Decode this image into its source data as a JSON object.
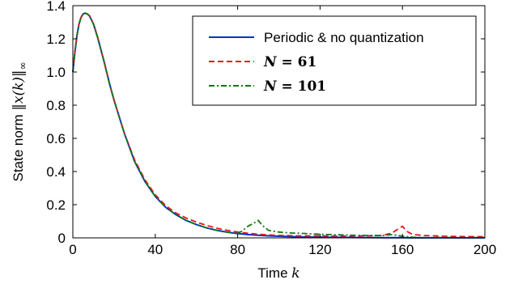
{
  "chart_data": {
    "type": "line",
    "title": "",
    "xlabel_prefix": "Time ",
    "xlabel_var": "k",
    "ylabel_prefix": "State norm ",
    "ylabel_math": "‖x(k)‖",
    "ylabel_sub": "∞",
    "xlim": [
      0,
      200
    ],
    "ylim": [
      0,
      1.4
    ],
    "xticks": [
      "0",
      "40",
      "80",
      "120",
      "160",
      "200"
    ],
    "yticks": [
      "0",
      "0.2",
      "0.4",
      "0.6",
      "0.8",
      "1.0",
      "1.2",
      "1.4"
    ],
    "xtick_values": [
      0,
      40,
      80,
      120,
      160,
      200
    ],
    "ytick_values": [
      0,
      0.2,
      0.4,
      0.6,
      0.8,
      1.0,
      1.2,
      1.4
    ],
    "grid": false,
    "legend_position": "top-right",
    "series": [
      {
        "name": "Periodic & no quantization",
        "color": "#0033cc",
        "dash": "solid",
        "x": [
          0,
          1,
          2,
          3,
          4,
          5,
          6,
          7,
          8,
          10,
          12,
          15,
          18,
          20,
          25,
          30,
          35,
          40,
          45,
          50,
          55,
          60,
          65,
          70,
          75,
          80,
          85,
          90,
          95,
          100,
          110,
          120,
          130,
          140,
          150,
          160,
          170,
          180,
          190,
          200
        ],
        "y": [
          1.0,
          1.12,
          1.22,
          1.29,
          1.33,
          1.35,
          1.355,
          1.35,
          1.34,
          1.29,
          1.21,
          1.07,
          0.92,
          0.83,
          0.63,
          0.46,
          0.34,
          0.25,
          0.185,
          0.14,
          0.105,
          0.08,
          0.06,
          0.045,
          0.034,
          0.026,
          0.02,
          0.016,
          0.012,
          0.01,
          0.006,
          0.004,
          0.003,
          0.002,
          0.0015,
          0.001,
          0.0008,
          0.0006,
          0.0005,
          0.0004
        ]
      },
      {
        "name": "N = 61",
        "label_prefix": "N",
        "label_suffix": " = 61",
        "color": "#e8141c",
        "dash": "dashed",
        "x": [
          0,
          1,
          2,
          3,
          4,
          5,
          6,
          7,
          8,
          10,
          12,
          15,
          18,
          20,
          25,
          30,
          35,
          40,
          45,
          50,
          55,
          60,
          65,
          70,
          75,
          80,
          85,
          90,
          95,
          100,
          110,
          120,
          130,
          140,
          150,
          155,
          158,
          160,
          162,
          165,
          170,
          180,
          190,
          200
        ],
        "y": [
          1.0,
          1.12,
          1.22,
          1.29,
          1.33,
          1.35,
          1.355,
          1.35,
          1.34,
          1.29,
          1.21,
          1.07,
          0.92,
          0.83,
          0.63,
          0.47,
          0.35,
          0.26,
          0.195,
          0.15,
          0.12,
          0.095,
          0.075,
          0.058,
          0.045,
          0.035,
          0.028,
          0.022,
          0.018,
          0.015,
          0.012,
          0.012,
          0.011,
          0.012,
          0.014,
          0.03,
          0.055,
          0.07,
          0.04,
          0.02,
          0.015,
          0.01,
          0.008,
          0.007
        ]
      },
      {
        "name": "N = 101",
        "label_prefix": "N",
        "label_suffix": " = 101",
        "color": "#117a11",
        "dash": "dashdot",
        "x": [
          0,
          1,
          2,
          3,
          4,
          5,
          6,
          7,
          8,
          10,
          12,
          15,
          18,
          20,
          25,
          30,
          35,
          40,
          45,
          50,
          55,
          60,
          65,
          70,
          75,
          80,
          82,
          85,
          88,
          90,
          92,
          95,
          100,
          105,
          110,
          120,
          130,
          140,
          150,
          155,
          160,
          165,
          170,
          180,
          190,
          200
        ],
        "y": [
          1.0,
          1.12,
          1.22,
          1.29,
          1.33,
          1.35,
          1.355,
          1.35,
          1.34,
          1.29,
          1.21,
          1.07,
          0.92,
          0.83,
          0.63,
          0.46,
          0.34,
          0.25,
          0.185,
          0.14,
          0.105,
          0.08,
          0.06,
          0.045,
          0.034,
          0.028,
          0.04,
          0.07,
          0.09,
          0.105,
          0.075,
          0.045,
          0.035,
          0.03,
          0.028,
          0.022,
          0.018,
          0.015,
          0.014,
          0.02,
          0.01,
          0.004,
          0.002,
          0.002,
          0.002,
          0.002
        ]
      }
    ]
  }
}
